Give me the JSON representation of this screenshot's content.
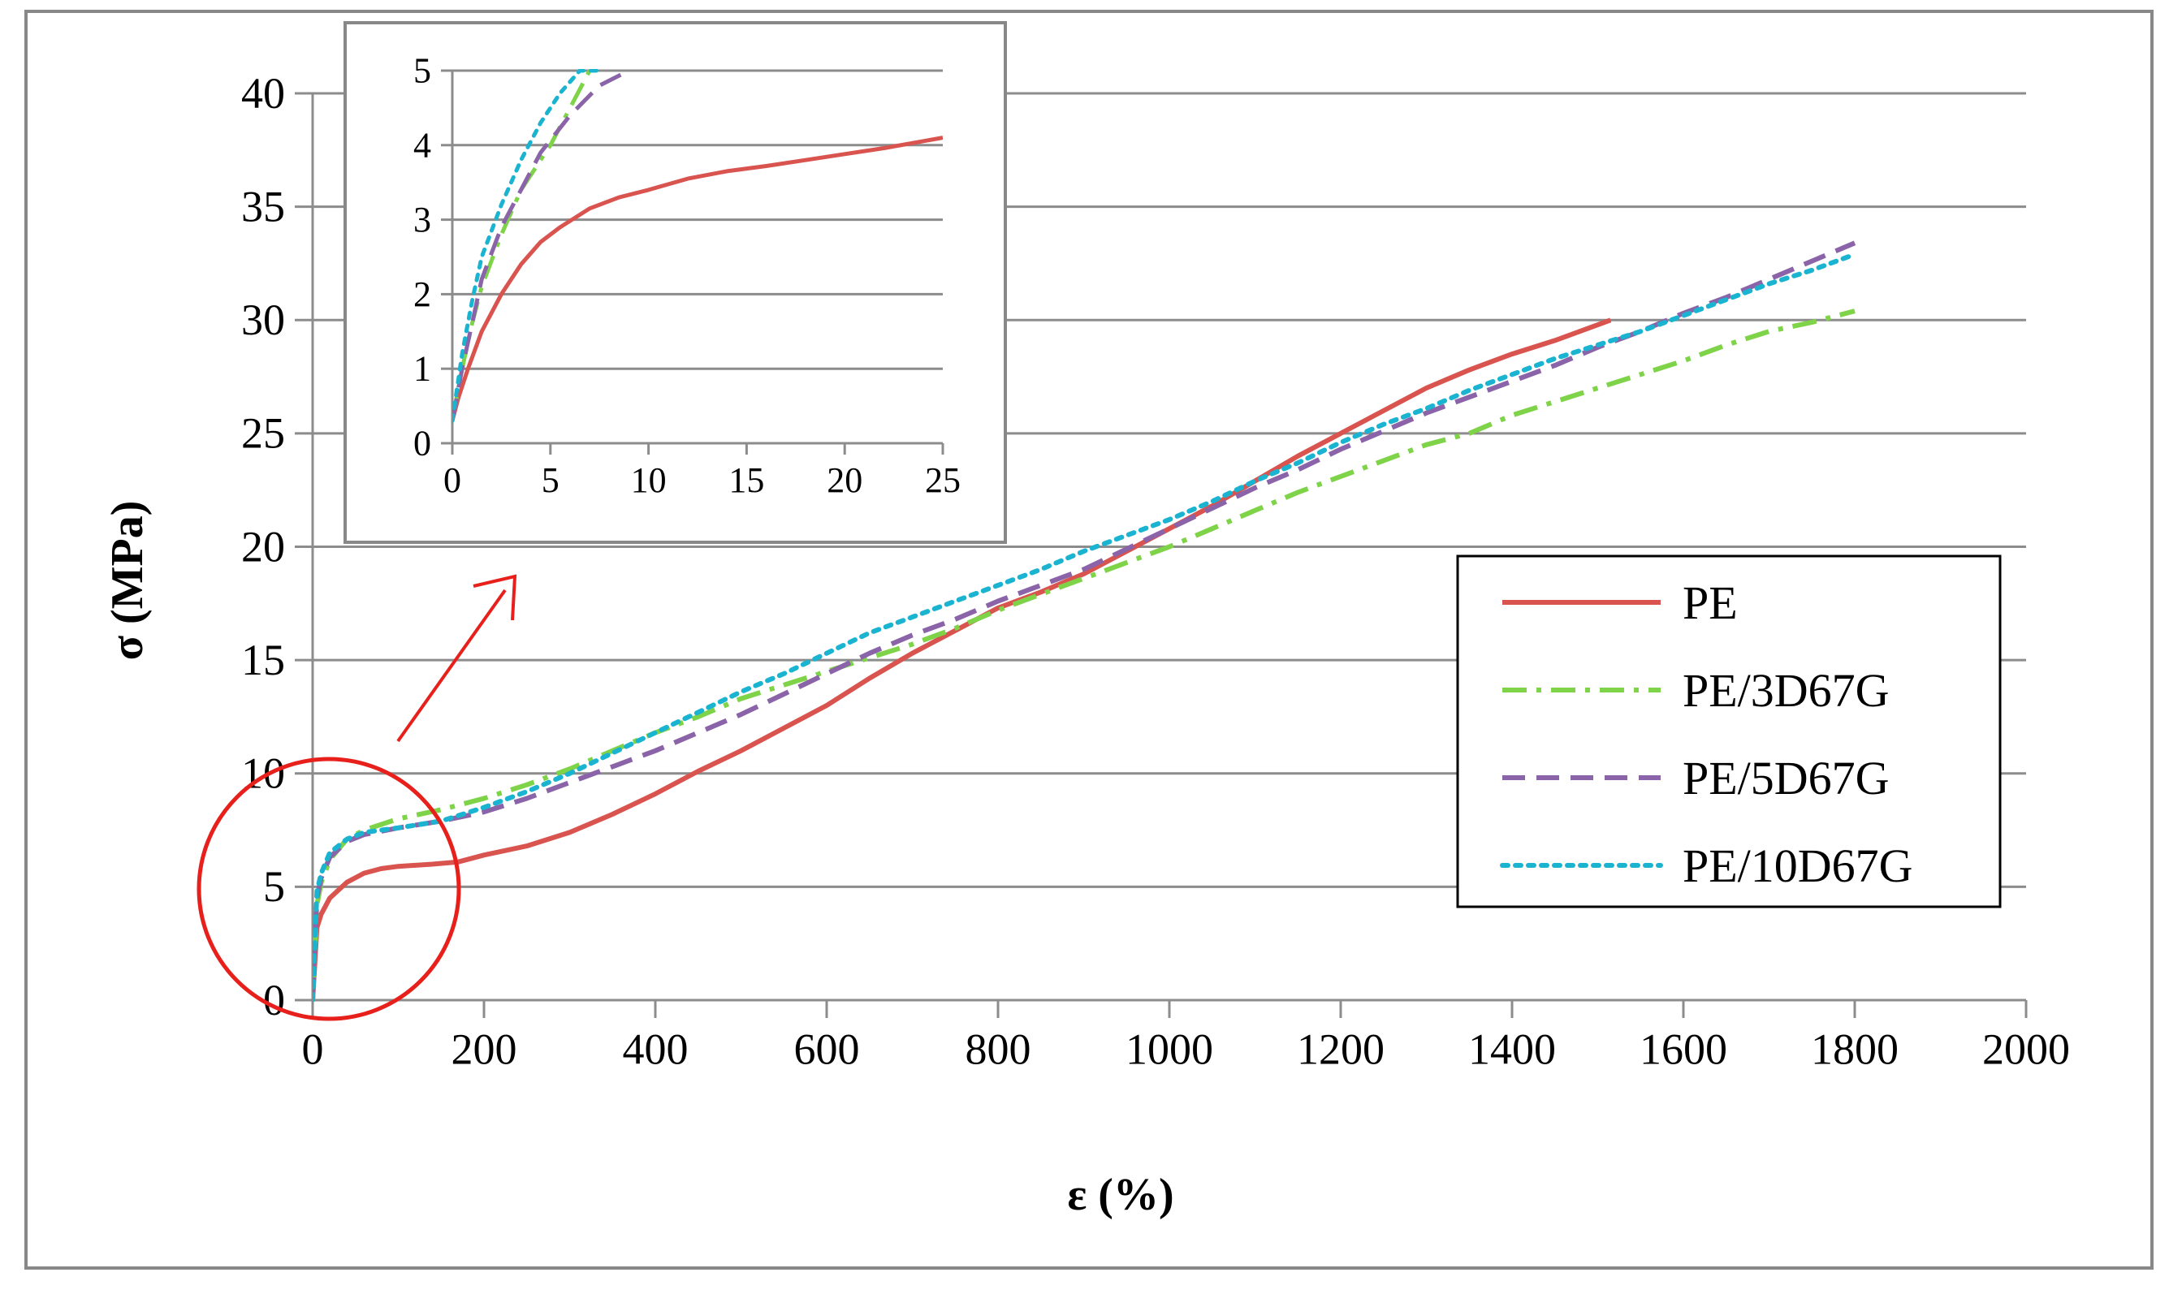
{
  "chart_data": [
    {
      "id": "main",
      "type": "line",
      "xlabel": "ε (%)",
      "ylabel": "σ (MPa)",
      "xlim": [
        0,
        2000
      ],
      "ylim": [
        0,
        40
      ],
      "x_ticks": [
        0,
        200,
        400,
        600,
        800,
        1000,
        1200,
        1400,
        1600,
        1800,
        2000
      ],
      "y_ticks": [
        0,
        5,
        10,
        15,
        20,
        25,
        30,
        35,
        40
      ],
      "grid": "horizontal",
      "legend_position": "right",
      "annotations": [
        "red circle around origin region",
        "red arrow pointing to inset"
      ],
      "series": [
        {
          "name": "PE",
          "color": "#d9534f",
          "dash": "solid",
          "x": [
            0,
            5,
            10,
            20,
            40,
            60,
            80,
            100,
            140,
            170,
            200,
            250,
            300,
            350,
            400,
            450,
            500,
            550,
            600,
            650,
            700,
            750,
            800,
            850,
            900,
            950,
            1000,
            1050,
            1100,
            1150,
            1200,
            1250,
            1300,
            1350,
            1400,
            1450,
            1515
          ],
          "y": [
            0,
            3.2,
            3.8,
            4.5,
            5.2,
            5.6,
            5.8,
            5.9,
            6.0,
            6.1,
            6.4,
            6.8,
            7.4,
            8.2,
            9.1,
            10.1,
            11.0,
            12.0,
            13.0,
            14.2,
            15.3,
            16.3,
            17.3,
            18.0,
            18.8,
            19.8,
            20.8,
            21.8,
            22.9,
            24.0,
            25.0,
            26.0,
            27.0,
            27.8,
            28.5,
            29.1,
            30.0
          ]
        },
        {
          "name": "PE/3D67G",
          "color": "#7ed348",
          "dash": "dashdot",
          "x": [
            0,
            5,
            10,
            20,
            40,
            60,
            100,
            150,
            200,
            250,
            300,
            350,
            400,
            450,
            500,
            550,
            600,
            650,
            700,
            750,
            800,
            850,
            900,
            950,
            1000,
            1050,
            1100,
            1150,
            1200,
            1250,
            1300,
            1350,
            1400,
            1450,
            1500,
            1550,
            1600,
            1650,
            1700,
            1750,
            1800
          ],
          "y": [
            0,
            4.2,
            5.2,
            6.2,
            7.1,
            7.5,
            8.0,
            8.4,
            8.9,
            9.5,
            10.2,
            11.0,
            11.8,
            12.5,
            13.3,
            13.9,
            14.5,
            15.1,
            15.7,
            16.4,
            17.2,
            17.9,
            18.6,
            19.3,
            20.0,
            20.8,
            21.6,
            22.4,
            23.1,
            23.8,
            24.5,
            25.0,
            25.8,
            26.4,
            27.0,
            27.6,
            28.2,
            28.9,
            29.5,
            29.9,
            30.4
          ]
        },
        {
          "name": "PE/5D67G",
          "color": "#8a63a8",
          "dash": "dash",
          "x": [
            0,
            5,
            10,
            20,
            40,
            60,
            100,
            150,
            200,
            250,
            300,
            350,
            400,
            450,
            500,
            550,
            600,
            650,
            700,
            750,
            800,
            850,
            900,
            950,
            1000,
            1050,
            1100,
            1150,
            1200,
            1250,
            1300,
            1350,
            1400,
            1450,
            1500,
            1550,
            1600,
            1650,
            1700,
            1750,
            1800
          ],
          "y": [
            0,
            4.5,
            5.4,
            6.3,
            7.0,
            7.3,
            7.6,
            7.9,
            8.3,
            8.9,
            9.6,
            10.3,
            11.0,
            11.8,
            12.6,
            13.5,
            14.4,
            15.3,
            16.1,
            16.8,
            17.6,
            18.3,
            19.0,
            19.9,
            20.8,
            21.7,
            22.6,
            23.4,
            24.3,
            25.1,
            25.9,
            26.6,
            27.3,
            28.0,
            28.8,
            29.5,
            30.3,
            31.0,
            31.8,
            32.6,
            33.4
          ]
        },
        {
          "name": "PE/10D67G",
          "color": "#1ab4d1",
          "dash": "dot",
          "x": [
            0,
            5,
            10,
            20,
            40,
            60,
            100,
            150,
            200,
            250,
            300,
            350,
            400,
            450,
            500,
            550,
            600,
            650,
            700,
            750,
            800,
            850,
            900,
            950,
            1000,
            1050,
            1100,
            1150,
            1200,
            1250,
            1300,
            1350,
            1400,
            1450,
            1500,
            1550,
            1600,
            1650,
            1700,
            1750,
            1800
          ],
          "y": [
            0,
            4.8,
            5.6,
            6.5,
            7.1,
            7.4,
            7.6,
            7.9,
            8.5,
            9.2,
            10.0,
            10.9,
            11.8,
            12.7,
            13.6,
            14.4,
            15.3,
            16.2,
            16.9,
            17.6,
            18.3,
            19.0,
            19.8,
            20.5,
            21.2,
            22.0,
            22.9,
            23.7,
            24.6,
            25.4,
            26.1,
            26.9,
            27.6,
            28.3,
            28.9,
            29.5,
            30.2,
            30.9,
            31.6,
            32.2,
            32.9
          ]
        }
      ]
    },
    {
      "id": "inset",
      "type": "line",
      "xlabel": "",
      "ylabel": "",
      "xlim": [
        0,
        25
      ],
      "ylim": [
        0,
        5
      ],
      "x_ticks": [
        0,
        5,
        10,
        15,
        20,
        25
      ],
      "y_ticks": [
        0,
        1,
        2,
        3,
        4,
        5
      ],
      "grid": "horizontal",
      "series": [
        {
          "name": "PE",
          "color": "#d9534f",
          "dash": "solid",
          "x": [
            0,
            0.3,
            0.8,
            1.5,
            2.5,
            3.5,
            4.5,
            5.5,
            7,
            8.5,
            10,
            12,
            14,
            16,
            18,
            20,
            22,
            25
          ],
          "y": [
            0.3,
            0.6,
            1.0,
            1.5,
            2.0,
            2.4,
            2.7,
            2.9,
            3.15,
            3.3,
            3.4,
            3.55,
            3.65,
            3.72,
            3.8,
            3.88,
            3.96,
            4.1
          ]
        },
        {
          "name": "PE/3D67G",
          "color": "#7ed348",
          "dash": "dashdot",
          "x": [
            0,
            0.5,
            1,
            1.5,
            2.5,
            3.5,
            5,
            6,
            7
          ],
          "y": [
            0.3,
            1.0,
            1.6,
            2.1,
            2.8,
            3.4,
            4.0,
            4.5,
            5.0
          ]
        },
        {
          "name": "PE/5D67G",
          "color": "#8a63a8",
          "dash": "dash",
          "x": [
            0,
            0.5,
            1,
            1.5,
            2.5,
            3.5,
            4.5,
            6,
            7.5,
            9
          ],
          "y": [
            0.3,
            1.0,
            1.6,
            2.2,
            2.9,
            3.4,
            3.9,
            4.4,
            4.8,
            5.0
          ]
        },
        {
          "name": "PE/10D67G",
          "color": "#1ab4d1",
          "dash": "dot",
          "x": [
            0,
            0.5,
            1,
            1.5,
            2.5,
            3.5,
            4.5,
            5.5,
            6.5,
            7.5
          ],
          "y": [
            0.3,
            1.2,
            1.9,
            2.5,
            3.2,
            3.8,
            4.3,
            4.7,
            5.0,
            5.0
          ]
        }
      ]
    }
  ]
}
